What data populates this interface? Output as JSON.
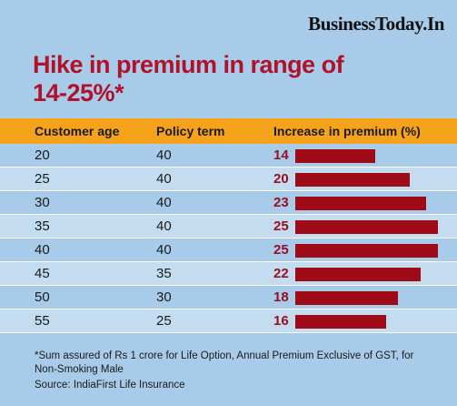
{
  "brand": "BusinessToday.In",
  "chart_data": {
    "type": "table",
    "title": "Hike in premium in range of 14-25%*",
    "columns": [
      "Customer age",
      "Policy term",
      "Increase in premium (%)"
    ],
    "rows": [
      {
        "age": "20",
        "term": "40",
        "increase": 14
      },
      {
        "age": "25",
        "term": "40",
        "increase": 20
      },
      {
        "age": "30",
        "term": "40",
        "increase": 23
      },
      {
        "age": "35",
        "term": "40",
        "increase": 25
      },
      {
        "age": "40",
        "term": "40",
        "increase": 25
      },
      {
        "age": "45",
        "term": "35",
        "increase": 22
      },
      {
        "age": "50",
        "term": "30",
        "increase": 18
      },
      {
        "age": "55",
        "term": "25",
        "increase": 16
      }
    ],
    "bar_color": "#9e0a16",
    "header_color": "#f6a21b",
    "title_color": "#b0122a"
  },
  "footnote": "*Sum assured of Rs 1 crore for Life Option, Annual Premium Exclusive of GST, for Non-Smoking Male",
  "source": "Source: IndiaFirst Life Insurance"
}
